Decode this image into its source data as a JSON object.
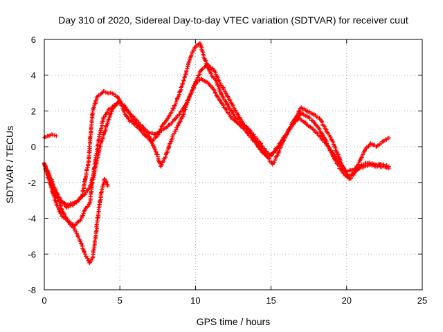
{
  "chart_data": {
    "type": "scatter",
    "title": "Day 310 of 2020, Sidereal Day-to-day VTEC variation (SDTVAR) for receiver cuut",
    "xlabel": "GPS time / hours",
    "ylabel": "SDTVAR / TECUs",
    "xlim": [
      0,
      25
    ],
    "ylim": [
      -8,
      6
    ],
    "xticks": [
      0,
      5,
      10,
      15,
      20,
      25
    ],
    "yticks": [
      -8,
      -6,
      -4,
      -2,
      0,
      2,
      4,
      6
    ],
    "grid": true,
    "marker": "plus",
    "color": "#ff0000",
    "series": [
      {
        "name": "trace-1",
        "x": [
          0.0,
          0.3,
          0.7,
          1.1,
          1.5,
          2.0,
          2.5,
          2.9,
          3.2,
          3.5,
          3.8,
          4.0,
          4.3,
          4.7,
          5.0,
          5.3,
          5.6,
          5.9,
          6.3,
          6.7,
          7.1,
          7.5,
          7.8,
          8.2,
          8.7,
          9.1,
          9.5,
          9.8,
          10.1,
          10.3,
          10.6,
          11.0,
          11.4,
          11.8,
          12.2,
          12.6,
          13.0,
          13.4,
          13.8,
          14.2,
          14.6,
          15.0,
          15.4,
          15.8,
          16.2,
          16.6,
          17.0,
          17.4,
          17.8,
          18.2,
          18.6,
          19.0,
          19.4,
          19.8,
          20.1,
          20.4,
          20.8,
          21.2,
          21.6,
          22.0,
          22.4,
          22.8
        ],
        "y": [
          -1.0,
          -1.5,
          -2.4,
          -3.0,
          -3.4,
          -3.2,
          -2.8,
          -1.0,
          2.0,
          2.8,
          3.0,
          3.1,
          3.0,
          2.9,
          2.6,
          1.9,
          1.5,
          1.3,
          1.0,
          0.6,
          0.3,
          0.6,
          1.2,
          1.6,
          2.4,
          3.4,
          4.5,
          5.3,
          5.7,
          5.8,
          4.9,
          4.1,
          3.6,
          2.8,
          2.2,
          1.7,
          1.3,
          1.1,
          0.7,
          0.3,
          -0.2,
          -0.5,
          -0.1,
          0.4,
          1.0,
          1.6,
          2.2,
          2.0,
          1.8,
          1.6,
          1.0,
          0.4,
          -0.4,
          -1.2,
          -1.7,
          -1.5,
          -0.9,
          -0.2,
          0.2,
          0.0,
          0.3,
          0.5
        ]
      },
      {
        "name": "trace-2",
        "x": [
          0.0,
          0.3,
          0.6,
          0.9,
          1.2,
          1.6,
          2.0,
          2.4,
          2.7,
          3.0,
          3.3,
          3.6,
          3.9,
          4.2,
          4.6,
          5.0,
          5.4,
          5.8,
          6.2,
          6.6,
          7.0,
          7.4,
          7.7,
          8.0,
          8.4,
          8.8,
          9.2,
          9.6,
          10.0,
          10.4,
          10.8,
          11.2,
          11.6,
          12.0,
          12.4,
          12.8,
          13.2,
          13.6,
          14.0,
          14.4,
          14.8,
          15.1,
          15.4,
          15.8,
          16.2,
          16.6,
          17.0,
          17.4,
          17.8,
          18.2,
          18.6,
          19.0,
          19.4,
          19.8,
          20.2,
          20.6,
          21.0,
          21.5,
          22.0,
          22.4,
          22.8
        ],
        "y": [
          -0.9,
          -1.7,
          -2.7,
          -3.4,
          -3.9,
          -4.2,
          -4.4,
          -4.1,
          -3.5,
          -3.2,
          -1.2,
          0.4,
          1.6,
          2.0,
          2.3,
          2.5,
          2.2,
          1.6,
          1.2,
          0.9,
          0.5,
          -0.3,
          -1.1,
          -0.6,
          0.4,
          1.1,
          1.8,
          2.8,
          3.6,
          4.3,
          4.6,
          4.3,
          3.6,
          3.0,
          2.4,
          1.8,
          1.2,
          0.8,
          0.3,
          -0.2,
          -0.6,
          -1.0,
          -0.5,
          0.3,
          1.0,
          1.5,
          1.9,
          1.7,
          1.4,
          1.0,
          0.4,
          -0.4,
          -1.0,
          -1.5,
          -1.8,
          -1.4,
          -1.0,
          -0.9,
          -1.0,
          -1.0,
          -1.1
        ]
      },
      {
        "name": "trace-3",
        "x": [
          0.0,
          0.3,
          0.6,
          1.0,
          1.4,
          1.8,
          2.2,
          2.6,
          3.0,
          3.3,
          3.6,
          3.9,
          4.2,
          4.5,
          4.9,
          5.3,
          5.7,
          6.1,
          6.5,
          6.9,
          7.3,
          7.7,
          8.1,
          8.5,
          8.9,
          9.3,
          9.7,
          10.0,
          10.4,
          10.8,
          11.2,
          11.6,
          12.0,
          12.4,
          12.8,
          13.2,
          13.6,
          14.0,
          14.4,
          14.8,
          15.2,
          15.6,
          16.0,
          16.4,
          16.8,
          17.2,
          17.6,
          18.0,
          18.4,
          18.8,
          19.2,
          19.6,
          20.0,
          20.4,
          20.8,
          21.2,
          21.6,
          22.0,
          22.4,
          22.8
        ],
        "y": [
          -1.0,
          -1.8,
          -2.6,
          -3.0,
          -3.2,
          -3.2,
          -3.0,
          -2.7,
          -2.3,
          -1.5,
          -0.3,
          0.6,
          1.4,
          2.1,
          2.5,
          2.2,
          1.8,
          1.5,
          1.1,
          0.8,
          0.7,
          0.9,
          1.1,
          1.4,
          1.8,
          2.3,
          3.0,
          3.5,
          3.8,
          3.6,
          3.2,
          2.6,
          2.1,
          1.6,
          1.3,
          1.0,
          0.6,
          0.2,
          -0.3,
          -0.6,
          -0.3,
          0.2,
          0.7,
          1.2,
          1.6,
          1.4,
          1.1,
          0.8,
          0.4,
          0.0,
          -0.5,
          -1.0,
          -1.4,
          -1.3,
          -1.2,
          -1.1,
          -1.0,
          -1.1,
          -1.1,
          -1.2
        ]
      },
      {
        "name": "trace-4",
        "x": [
          0.0,
          0.2,
          0.5,
          0.8
        ],
        "y": [
          0.5,
          0.6,
          0.7,
          0.6
        ]
      },
      {
        "name": "trace-5",
        "x": [
          0.0,
          0.4,
          0.8,
          1.2,
          1.6,
          2.0,
          2.4,
          2.7,
          3.0,
          3.2,
          3.4,
          3.6,
          3.8,
          4.0,
          4.2
        ],
        "y": [
          -1.0,
          -1.8,
          -2.6,
          -3.6,
          -4.2,
          -4.6,
          -5.3,
          -6.0,
          -6.5,
          -6.2,
          -5.0,
          -3.5,
          -2.4,
          -1.8,
          -2.2
        ]
      }
    ]
  }
}
